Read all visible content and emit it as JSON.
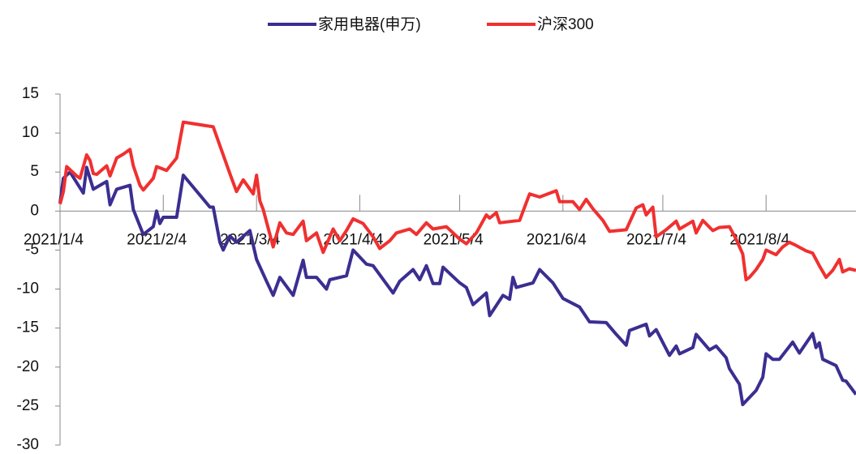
{
  "chart_data": {
    "type": "line",
    "xlim": [
      "2021/1/4",
      "2021/8/31"
    ],
    "xticks": [
      "2021/1/4",
      "2021/2/4",
      "2021/3/4",
      "2021/4/4",
      "2021/5/4",
      "2021/6/4",
      "2021/7/4",
      "2021/8/4"
    ],
    "ylim": [
      -30,
      15
    ],
    "yticks": [
      -30,
      -25,
      -20,
      -15,
      -10,
      -5,
      0,
      5,
      10,
      15
    ],
    "legend": "top",
    "series": [
      {
        "name": "家用电器(申万)",
        "color": "#3b2e91",
        "x": [
          "2021/1/4",
          "2021/1/5",
          "2021/1/7",
          "2021/1/11",
          "2021/1/12",
          "2021/1/14",
          "2021/1/18",
          "2021/1/19",
          "2021/1/21",
          "2021/1/25",
          "2021/1/26",
          "2021/1/29",
          "2021/2/1",
          "2021/2/2",
          "2021/2/3",
          "2021/2/4",
          "2021/2/8",
          "2021/2/10",
          "2021/2/18",
          "2021/2/19",
          "2021/2/21",
          "2021/2/22",
          "2021/2/24",
          "2021/2/26",
          "2021/3/2",
          "2021/3/4",
          "2021/3/7",
          "2021/3/9",
          "2021/3/11",
          "2021/3/15",
          "2021/3/18",
          "2021/3/19",
          "2021/3/22",
          "2021/3/25",
          "2021/3/26",
          "2021/3/31",
          "2021/4/2",
          "2021/4/6",
          "2021/4/8",
          "2021/4/14",
          "2021/4/16",
          "2021/4/20",
          "2021/4/22",
          "2021/4/24",
          "2021/4/26",
          "2021/4/28",
          "2021/4/29",
          "2021/5/4",
          "2021/5/6",
          "2021/5/8",
          "2021/5/12",
          "2021/5/13",
          "2021/5/17",
          "2021/5/19",
          "2021/5/20",
          "2021/5/21",
          "2021/5/26",
          "2021/5/28",
          "2021/6/1",
          "2021/6/4",
          "2021/6/9",
          "2021/6/12",
          "2021/6/17",
          "2021/6/20",
          "2021/6/23",
          "2021/6/24",
          "2021/6/29",
          "2021/6/30",
          "2021/7/2",
          "2021/7/6",
          "2021/7/8",
          "2021/7/9",
          "2021/7/13",
          "2021/7/14",
          "2021/7/18",
          "2021/7/20",
          "2021/7/23",
          "2021/7/24",
          "2021/7/27",
          "2021/7/28",
          "2021/8/1",
          "2021/8/3",
          "2021/8/4",
          "2021/8/6",
          "2021/8/8",
          "2021/8/12",
          "2021/8/14",
          "2021/8/18",
          "2021/8/19",
          "2021/8/20",
          "2021/8/21",
          "2021/8/25",
          "2021/8/27",
          "2021/8/28",
          "2021/8/31"
        ],
        "values": [
          1,
          4.2,
          5,
          2.3,
          5.6,
          2.8,
          3.8,
          0.8,
          2.8,
          3.3,
          0.2,
          -3,
          -2,
          0,
          -1.6,
          -0.8,
          -0.8,
          4.6,
          0.5,
          0.5,
          -4,
          -5,
          -3.2,
          -4,
          -2.5,
          -6.2,
          -9,
          -10.8,
          -8.5,
          -10.8,
          -6.3,
          -8.5,
          -8.5,
          -10,
          -8.8,
          -8.3,
          -5,
          -6.8,
          -7,
          -10.5,
          -9,
          -7.5,
          -8.8,
          -7,
          -9.3,
          -9.3,
          -7.2,
          -9.2,
          -9.8,
          -12,
          -10.5,
          -13.4,
          -10.8,
          -11.3,
          -8.5,
          -9.8,
          -9.2,
          -7.5,
          -9.2,
          -11.2,
          -12.3,
          -14.2,
          -14.3,
          -15.8,
          -17.2,
          -15.3,
          -14.5,
          -16,
          -15.2,
          -18.5,
          -17.3,
          -18.3,
          -17.5,
          -15.8,
          -17.8,
          -17.3,
          -18.8,
          -20.2,
          -22.2,
          -24.8,
          -23,
          -21.3,
          -18.3,
          -19,
          -19,
          -16.8,
          -18.2,
          -15.7,
          -17.5,
          -16.9,
          -19,
          -19.8,
          -21.7,
          -21.8,
          -23.5
        ]
      },
      {
        "name": "沪深300",
        "color": "#f03030",
        "x": [
          "2021/1/4",
          "2021/1/5",
          "2021/1/6",
          "2021/1/9",
          "2021/1/10",
          "2021/1/12",
          "2021/1/13",
          "2021/1/14",
          "2021/1/15",
          "2021/1/18",
          "2021/1/19",
          "2021/1/21",
          "2021/1/23",
          "2021/1/25",
          "2021/1/26",
          "2021/1/28",
          "2021/1/29",
          "2021/2/1",
          "2021/2/2",
          "2021/2/5",
          "2021/2/8",
          "2021/2/10",
          "2021/2/19",
          "2021/2/22",
          "2021/2/24",
          "2021/2/26",
          "2021/2/28",
          "2021/3/3",
          "2021/3/4",
          "2021/3/5",
          "2021/3/6",
          "2021/3/8",
          "2021/3/9",
          "2021/3/11",
          "2021/3/13",
          "2021/3/15",
          "2021/3/18",
          "2021/3/19",
          "2021/3/22",
          "2021/3/24",
          "2021/3/27",
          "2021/3/29",
          "2021/3/31",
          "2021/4/2",
          "2021/4/5",
          "2021/4/8",
          "2021/4/10",
          "2021/4/13",
          "2021/4/15",
          "2021/4/19",
          "2021/4/21",
          "2021/4/24",
          "2021/4/26",
          "2021/4/30",
          "2021/5/4",
          "2021/5/6",
          "2021/5/9",
          "2021/5/12",
          "2021/5/13",
          "2021/5/15",
          "2021/5/16",
          "2021/5/20",
          "2021/5/22",
          "2021/5/25",
          "2021/5/28",
          "2021/6/2",
          "2021/6/3",
          "2021/6/7",
          "2021/6/9",
          "2021/6/11",
          "2021/6/13",
          "2021/6/16",
          "2021/6/18",
          "2021/6/23",
          "2021/6/26",
          "2021/6/28",
          "2021/6/29",
          "2021/7/1",
          "2021/7/2",
          "2021/7/5",
          "2021/7/8",
          "2021/7/9",
          "2021/7/13",
          "2021/7/14",
          "2021/7/16",
          "2021/7/19",
          "2021/7/21",
          "2021/7/24",
          "2021/7/26",
          "2021/7/28",
          "2021/7/29",
          "2021/7/30",
          "2021/8/1",
          "2021/8/3",
          "2021/8/4",
          "2021/8/7",
          "2021/8/9",
          "2021/8/11",
          "2021/8/13",
          "2021/8/16",
          "2021/8/18",
          "2021/8/20",
          "2021/8/22",
          "2021/8/24",
          "2021/8/26",
          "2021/8/27",
          "2021/8/29",
          "2021/8/31"
        ],
        "values": [
          0.9,
          2.5,
          5.7,
          4.5,
          4.2,
          7.2,
          6.5,
          4.8,
          4.7,
          5.8,
          4.5,
          6.8,
          7.3,
          7.9,
          5.8,
          3.3,
          2.7,
          4.2,
          5.7,
          5.2,
          6.8,
          11.4,
          10.8,
          7.2,
          4.8,
          2.5,
          4,
          2.2,
          4.6,
          1.3,
          0.2,
          -3,
          -4.6,
          -1.5,
          -2.8,
          -3,
          -1.3,
          -3.8,
          -2.8,
          -5.3,
          -2.3,
          -3.8,
          -2.5,
          -1,
          -1.6,
          -3.3,
          -4.8,
          -3.8,
          -2.8,
          -2.3,
          -3,
          -1.5,
          -2.3,
          -2,
          -3.6,
          -4.2,
          -2.8,
          -0.5,
          -0.9,
          -0.2,
          -1.5,
          -1.3,
          -1.2,
          2.2,
          1.8,
          2.6,
          1.2,
          1.2,
          0.2,
          1.5,
          0.3,
          -1.2,
          -2.6,
          -2.4,
          0.4,
          0.8,
          -0.5,
          0.5,
          -3.3,
          -2.4,
          -1.3,
          -2.3,
          -1.3,
          -2.8,
          -1.2,
          -2.5,
          -2.1,
          -2,
          -3.6,
          -5.5,
          -8.8,
          -8.5,
          -7.5,
          -6.2,
          -5,
          -5.6,
          -4.6,
          -4,
          -4.4,
          -5.1,
          -5.4,
          -7,
          -8.5,
          -7.6,
          -6.2,
          -7.8,
          -7.4,
          -7.6
        ]
      }
    ]
  }
}
